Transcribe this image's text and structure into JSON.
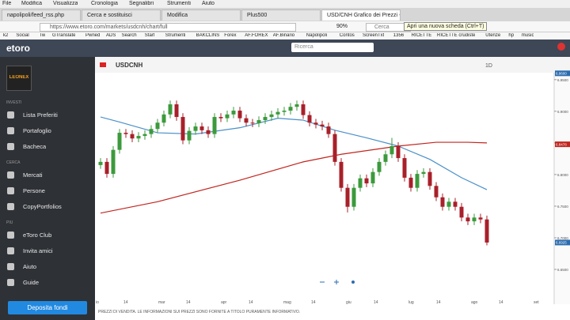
{
  "browser": {
    "menu": [
      "File",
      "Modifica",
      "Visualizza",
      "Cronologia",
      "Segnalibri",
      "Strumenti",
      "Aiuto"
    ],
    "tabs": [
      "napolipoli/feed_rss.php",
      "Cerca e sostituisci",
      "Modifica",
      "Plus500",
      "USD/CNH Grafico dei Prezzi - ..."
    ],
    "url": "https://www.etoro.com/markets/usdcnh/chart/full",
    "zoom": "90%",
    "search": "Cerca",
    "tooltip": "Apri una nuova scheda (Ctrl+T)",
    "bookmarks": [
      "k2",
      "Social",
      "Tw",
      "GTranslate",
      "Pwned",
      "ADS",
      "Search",
      "Start",
      "Strumenti",
      "BAKCLINS",
      "Forex",
      "AF.FOREX",
      "AF.Binario",
      "Napolipoli",
      "Contos",
      "ScreenTxt",
      "1356",
      "RICETTE",
      "RICETTE crudiste",
      "Utenze",
      "hp",
      "music"
    ]
  },
  "app": {
    "logo": "etoro",
    "avatar": "LEONEX",
    "search": "Ricerca",
    "button": "Deposita fondi",
    "sidebar": [
      {
        "title": "INVESTI",
        "items": [
          "Lista Preferiti",
          "Portafoglio",
          "Bacheca"
        ]
      },
      {
        "title": "CERCA",
        "items": [
          "Mercati",
          "Persone",
          "CopyPortfolios"
        ]
      },
      {
        "title": "PIÙ",
        "items": [
          "eToro Club",
          "Invita amici",
          "Aiuto",
          "Guide"
        ]
      }
    ],
    "disclaimer": "PREZZI DI VENDITA. LE INFORMAZIONI SUI PREZZI SONO FORNITE A TITOLO PURAMENTE INFORMATIVO."
  },
  "chart_data": {
    "type": "candlestick",
    "title": "USDCNH",
    "period": "1D",
    "up_color": "#3c9a3c",
    "down_color": "#a8202a",
    "x_labels": [
      "io",
      "14",
      "mar",
      "14",
      "apr",
      "14",
      "mag",
      "14",
      "giu",
      "14",
      "lug",
      "14",
      "ago",
      "14",
      "set"
    ],
    "ylim": [
      6.595,
      6.961
    ],
    "yticks": [
      {
        "value": 6.95,
        "label": "6.9500"
      },
      {
        "value": 6.9,
        "label": "6.9000"
      },
      {
        "value": 6.85,
        "label": "6.8500"
      },
      {
        "value": 6.8,
        "label": "6.8000"
      },
      {
        "value": 6.75,
        "label": "6.7500"
      },
      {
        "value": 6.7,
        "label": "6.7000"
      },
      {
        "value": 6.65,
        "label": "6.6500"
      }
    ],
    "price_tags": [
      {
        "value": 6.96,
        "label": "6.9600",
        "color": "#2b6cb0"
      },
      {
        "value": 6.8478,
        "label": "6.8478",
        "color": "#c0261f"
      },
      {
        "value": 6.6925,
        "label": "6.6925",
        "color": "#2b6cb0"
      }
    ],
    "open": [
      6.815,
      6.82,
      6.801,
      6.839,
      6.866,
      6.864,
      6.857,
      6.861,
      6.864,
      6.872,
      6.882,
      6.895,
      6.911,
      6.891,
      6.854,
      6.869,
      6.876,
      6.87,
      6.864,
      6.891,
      6.889,
      6.895,
      6.901,
      6.889,
      6.882,
      6.881,
      6.886,
      6.891,
      6.895,
      6.899,
      6.901,
      6.907,
      6.911,
      6.894,
      6.882,
      6.879,
      6.876,
      6.864,
      6.82,
      6.779,
      6.749,
      6.779,
      6.794,
      6.786,
      6.804,
      6.82,
      6.832,
      6.845,
      6.826,
      6.795,
      6.779,
      6.801,
      6.804,
      6.782,
      6.764,
      6.749,
      6.757,
      6.749,
      6.732,
      6.726,
      6.732,
      6.729
    ],
    "high": [
      6.826,
      6.826,
      6.845,
      6.872,
      6.872,
      6.87,
      6.867,
      6.87,
      6.878,
      6.888,
      6.901,
      6.917,
      6.917,
      6.897,
      6.875,
      6.882,
      6.882,
      6.876,
      6.897,
      6.897,
      6.901,
      6.907,
      6.907,
      6.895,
      6.888,
      6.892,
      6.897,
      6.901,
      6.905,
      6.907,
      6.913,
      6.917,
      6.917,
      6.9,
      6.888,
      6.885,
      6.882,
      6.87,
      6.826,
      6.785,
      6.785,
      6.8,
      6.8,
      6.81,
      6.826,
      6.838,
      6.858,
      6.851,
      6.832,
      6.801,
      6.807,
      6.81,
      6.81,
      6.788,
      6.77,
      6.763,
      6.763,
      6.755,
      6.738,
      6.738,
      6.738,
      6.735
    ],
    "low": [
      6.809,
      6.795,
      6.795,
      6.833,
      6.858,
      6.851,
      6.851,
      6.855,
      6.858,
      6.866,
      6.876,
      6.889,
      6.885,
      6.848,
      6.848,
      6.863,
      6.864,
      6.858,
      6.858,
      6.883,
      6.883,
      6.889,
      6.883,
      6.876,
      6.875,
      6.875,
      6.88,
      6.885,
      6.889,
      6.893,
      6.895,
      6.901,
      6.888,
      6.876,
      6.873,
      6.87,
      6.858,
      6.814,
      6.773,
      6.74,
      6.743,
      6.773,
      6.78,
      6.78,
      6.798,
      6.814,
      6.826,
      6.82,
      6.789,
      6.773,
      6.773,
      6.795,
      6.776,
      6.758,
      6.743,
      6.743,
      6.743,
      6.726,
      6.72,
      6.72,
      6.723,
      6.688
    ],
    "close": [
      6.82,
      6.801,
      6.839,
      6.866,
      6.864,
      6.857,
      6.861,
      6.864,
      6.872,
      6.882,
      6.895,
      6.911,
      6.891,
      6.854,
      6.869,
      6.876,
      6.87,
      6.864,
      6.891,
      6.889,
      6.895,
      6.901,
      6.889,
      6.882,
      6.881,
      6.886,
      6.891,
      6.895,
      6.899,
      6.901,
      6.907,
      6.911,
      6.894,
      6.882,
      6.879,
      6.876,
      6.864,
      6.82,
      6.779,
      6.749,
      6.779,
      6.794,
      6.786,
      6.804,
      6.82,
      6.832,
      6.845,
      6.826,
      6.795,
      6.779,
      6.801,
      6.804,
      6.782,
      6.764,
      6.749,
      6.757,
      6.749,
      6.732,
      6.726,
      6.732,
      6.729,
      6.6925
    ],
    "lines": [
      {
        "color": "#4a90c8",
        "x": [
          0,
          3,
          9,
          15,
          22,
          28,
          32,
          37,
          42,
          47,
          52,
          57,
          61
        ],
        "values": [
          6.891,
          6.883,
          6.866,
          6.864,
          6.874,
          6.889,
          6.886,
          6.87,
          6.858,
          6.845,
          6.824,
          6.795,
          6.776
        ]
      },
      {
        "color": "#c0261f",
        "x": [
          0,
          9,
          22,
          32,
          38,
          47,
          53,
          58,
          61
        ],
        "values": [
          6.739,
          6.757,
          6.791,
          6.82,
          6.832,
          6.845,
          6.851,
          6.851,
          6.85
        ]
      }
    ]
  }
}
